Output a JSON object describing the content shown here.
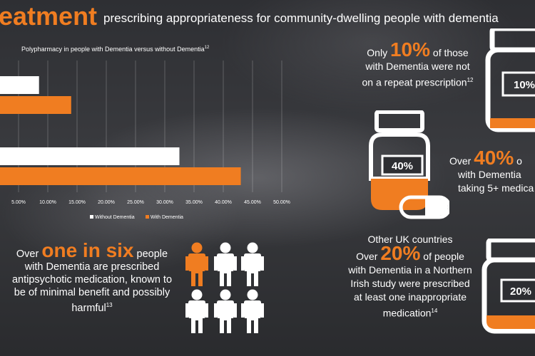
{
  "header": {
    "title": "eatment",
    "subtitle": "prescribing appropriateness for community-dwelling people with dementia"
  },
  "colors": {
    "accent": "#f07d21",
    "white": "#ffffff",
    "background": "#333438"
  },
  "chart_data": {
    "type": "bar",
    "orientation": "horizontal",
    "title": "Polypharmacy in people with Dementia versus without Dementia",
    "title_ref": "12",
    "categories": [
      "",
      ""
    ],
    "series": [
      {
        "name": "Without Dementia",
        "color": "#ffffff",
        "values": [
          8.5,
          32.5
        ]
      },
      {
        "name": "With Dementia",
        "color": "#f07d21",
        "values": [
          14.0,
          43.0
        ]
      }
    ],
    "x_ticks": [
      "5.00%",
      "10.00%",
      "15.00%",
      "20.00%",
      "25.00%",
      "30.00%",
      "35.00%",
      "40.00%",
      "45.00%",
      "50.00%"
    ],
    "xlim": [
      0,
      50
    ],
    "grid": true,
    "legend_position": "bottom"
  },
  "stats": {
    "repeat": {
      "pre": "Only ",
      "big": "10%",
      "post": " of those",
      "line2": "with Dementia were not",
      "line3": "on a repeat prescription",
      "ref": "12",
      "bottle_label": "10%"
    },
    "five_plus": {
      "pre": "Over ",
      "big": "40%",
      "post": " o",
      "line2": "with Dementia",
      "line3": "taking 5+ medica",
      "bottle_label": "40%"
    },
    "northern_ireland": {
      "line1": "Other UK countries",
      "pre": "Over ",
      "big": "20%",
      "post": " of people",
      "line3": "with Dementia in a Northern",
      "line4": "Irish study were prescribed",
      "line5": "at least one inappropriate",
      "line6": "medication",
      "ref": "14",
      "bottle_label": "20%"
    },
    "antipsychotic": {
      "pre": "Over ",
      "big": "one in six",
      "post": " people",
      "line2": "with Dementia are prescribed",
      "line3": "antipsychotic medication, known to",
      "line4": "be of minimal benefit and possibly",
      "line5": "harmful",
      "ref": "13"
    }
  }
}
